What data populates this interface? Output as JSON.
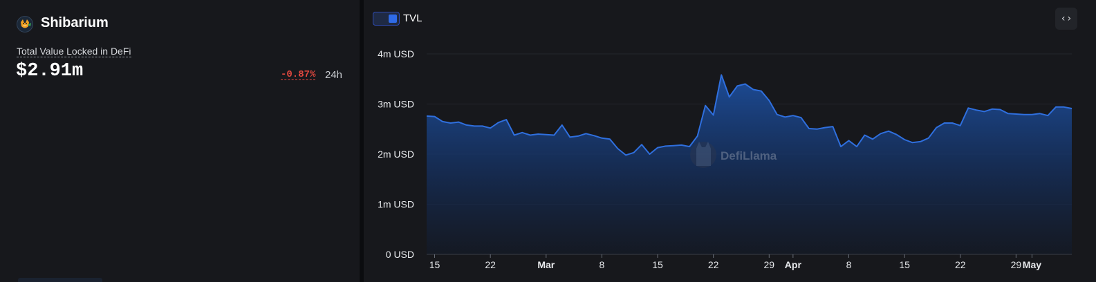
{
  "header": {
    "chain_name": "Shibarium",
    "tvl_label": "Total Value Locked in DeFi",
    "tvl_value": "$2.91m",
    "change_value": "-0.87%",
    "change_period": "24h"
  },
  "legend": {
    "label": "TVL",
    "toggle_on": true
  },
  "embed_button": {
    "label": "‹›"
  },
  "watermark": "DefiLlama",
  "colors": {
    "line": "#2f6fde",
    "negative": "#e0483f",
    "background": "#17181c"
  },
  "chart_data": {
    "type": "area",
    "title": "",
    "series": [
      {
        "name": "TVL",
        "values": [
          2.76,
          2.75,
          2.65,
          2.62,
          2.64,
          2.58,
          2.56,
          2.56,
          2.52,
          2.63,
          2.69,
          2.38,
          2.43,
          2.38,
          2.4,
          2.39,
          2.38,
          2.58,
          2.34,
          2.36,
          2.41,
          2.37,
          2.32,
          2.3,
          2.11,
          1.98,
          2.03,
          2.19,
          2.0,
          2.13,
          2.16,
          2.17,
          2.18,
          2.15,
          2.36,
          2.97,
          2.78,
          3.58,
          3.14,
          3.36,
          3.4,
          3.29,
          3.26,
          3.07,
          2.79,
          2.74,
          2.77,
          2.73,
          2.51,
          2.5,
          2.53,
          2.55,
          2.15,
          2.27,
          2.15,
          2.38,
          2.3,
          2.41,
          2.46,
          2.39,
          2.29,
          2.23,
          2.25,
          2.32,
          2.53,
          2.62,
          2.62,
          2.57,
          2.92,
          2.88,
          2.85,
          2.9,
          2.89,
          2.81,
          2.8,
          2.79,
          2.79,
          2.81,
          2.77,
          2.94,
          2.94,
          2.91
        ]
      }
    ],
    "y_ticks": [
      "0 USD",
      "1m USD",
      "2m USD",
      "3m USD",
      "4m USD"
    ],
    "ylim": [
      0,
      4
    ],
    "x_ticks": [
      {
        "index": 1,
        "label": "15",
        "bold": false
      },
      {
        "index": 8,
        "label": "22",
        "bold": false
      },
      {
        "index": 15,
        "label": "Mar",
        "bold": true
      },
      {
        "index": 22,
        "label": "8",
        "bold": false
      },
      {
        "index": 29,
        "label": "15",
        "bold": false
      },
      {
        "index": 36,
        "label": "22",
        "bold": false
      },
      {
        "index": 43,
        "label": "29",
        "bold": false
      },
      {
        "index": 46,
        "label": "Apr",
        "bold": true
      },
      {
        "index": 53,
        "label": "8",
        "bold": false
      },
      {
        "index": 60,
        "label": "15",
        "bold": false
      },
      {
        "index": 67,
        "label": "22",
        "bold": false
      },
      {
        "index": 74,
        "label": "29",
        "bold": false
      },
      {
        "index": 76,
        "label": "May",
        "bold": true
      }
    ]
  }
}
